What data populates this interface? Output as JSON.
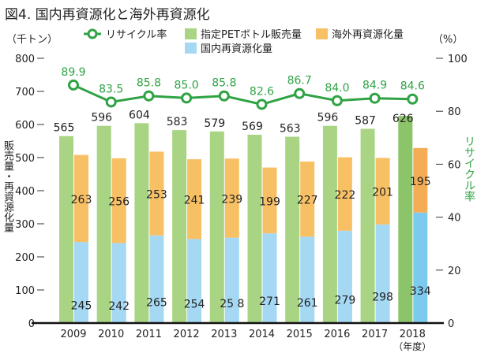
{
  "title": "図4. 国内再資源化と海外再資源化",
  "chart_data": {
    "type": "bar",
    "title": "図4. 国内再資源化と海外再資源化",
    "categories": [
      "2009",
      "2010",
      "2011",
      "2012",
      "2013",
      "2014",
      "2015",
      "2016",
      "2017",
      "2018"
    ],
    "xlabel": "（年度）",
    "ylabel": "販売量・再資源化量",
    "y_unit": "（千トン）",
    "ylim": [
      0,
      800
    ],
    "yticks": [
      0,
      100,
      200,
      300,
      400,
      500,
      600,
      700,
      800
    ],
    "y2label": "リサイクル率",
    "y2_unit": "（%）",
    "y2lim": [
      0,
      100
    ],
    "y2ticks": [
      0,
      20,
      40,
      60,
      80,
      100
    ],
    "legend_position": "top",
    "series": [
      {
        "name": "指定PETボトル販売量",
        "type": "bar",
        "color": "#a8d483",
        "highlight_color": "#8cc46a",
        "values": [
          565,
          596,
          604,
          583,
          579,
          569,
          563,
          596,
          587,
          626
        ]
      },
      {
        "name": "国内再資源化量",
        "type": "stacked-bar",
        "color": "#a4d8f3",
        "highlight_color": "#7ccbef",
        "values": [
          245,
          242,
          265,
          254,
          258,
          271,
          261,
          279,
          298,
          334
        ]
      },
      {
        "name": "海外再資源化量",
        "type": "stacked-bar",
        "color": "#f8c064",
        "highlight_color": "#f4ad55",
        "values": [
          263,
          256,
          253,
          241,
          239,
          199,
          227,
          222,
          201,
          195
        ]
      },
      {
        "name": "リサイクル率",
        "type": "line",
        "axis": "right",
        "color": "#2fa344",
        "values": [
          89.9,
          83.5,
          85.8,
          85.0,
          85.8,
          82.6,
          86.7,
          84.0,
          84.9,
          84.6
        ]
      }
    ],
    "value_label_texts": {
      "国内再資源化量_2013": "25 8"
    }
  }
}
